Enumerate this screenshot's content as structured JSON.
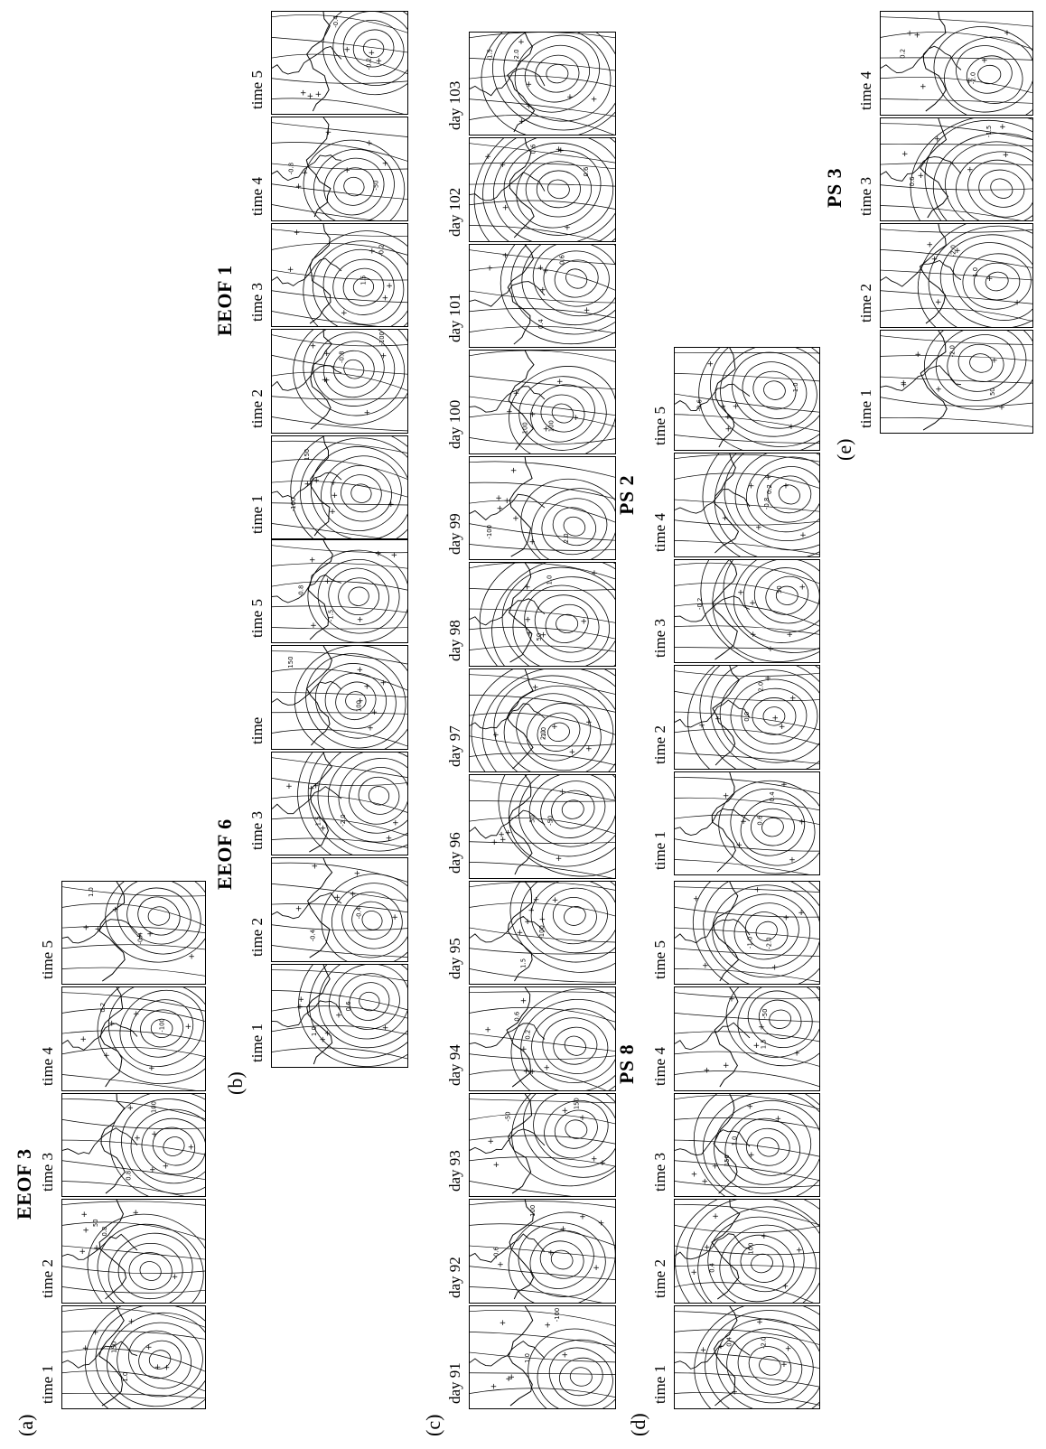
{
  "figure": {
    "rows": [
      {
        "id": "a",
        "letter": "(a)",
        "title": "EEOF 3",
        "panels": [
          "time 1",
          "time 2",
          "time 3",
          "time 4",
          "time 5"
        ]
      },
      {
        "id": "b",
        "letter": "(b)",
        "title": "EEOF 6",
        "panels": [
          "time 1",
          "time 2",
          "time 3",
          "time",
          "time 5"
        ],
        "extra_title": "EEOF 1",
        "extra_panels": [
          "time 1",
          "time 2",
          "time 3",
          "time 4",
          "time 5"
        ]
      },
      {
        "id": "c",
        "letter": "(c)",
        "title": "",
        "panels": [
          "day 91",
          "day 92",
          "day 93",
          "day 94",
          "day 95",
          "day 96",
          "day 97",
          "day 98",
          "day 99",
          "day 100",
          "day 101",
          "day 102",
          "day 103"
        ]
      },
      {
        "id": "d",
        "letter": "(d)",
        "title": "PS 8",
        "panels": [
          "time 1",
          "time 2",
          "time 3",
          "time 4",
          "time 5"
        ],
        "extra_title": "PS 2",
        "extra_panels": [
          "time 1",
          "time 2",
          "time 3",
          "time 4",
          "time 5"
        ]
      },
      {
        "id": "e",
        "letter": "(e)",
        "title": "PS 3",
        "panels": [
          "time 1",
          "time 2",
          "time 3",
          "time 4"
        ]
      }
    ],
    "contour_labels": [
      "0.0",
      "0.2",
      "0.4",
      "-0.2",
      "-0.4",
      "0.6",
      "-0.6",
      "0.8",
      "-0.8",
      "1.0",
      "-1.0",
      "1.5",
      "-1.5",
      "2.0",
      "-2.0",
      "50",
      "-50",
      "100",
      "-100",
      "150"
    ]
  }
}
